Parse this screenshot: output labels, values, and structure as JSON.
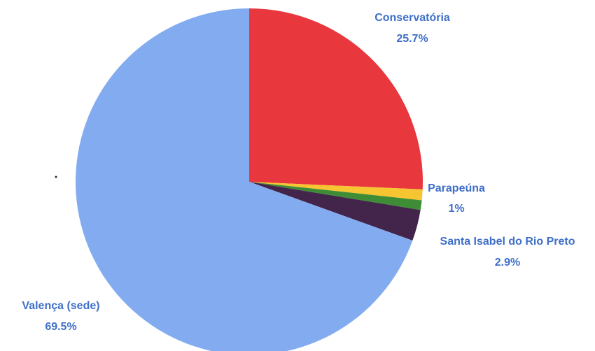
{
  "chart_data": {
    "type": "pie",
    "title": "",
    "legend": "none",
    "label_color": "#3f6fc8",
    "slices": [
      {
        "label": "Conservatória",
        "value": 25.7,
        "display": "25.7%",
        "color": "#e8373d"
      },
      {
        "label": "Parapeúna",
        "value": 1.0,
        "display": "1%",
        "color": "#f7c531",
        "show_label": true
      },
      {
        "label": "",
        "value": 0.9,
        "display": "",
        "color": "#3e8d36",
        "show_label": false
      },
      {
        "label": "Santa Isabel do Rio Preto",
        "value": 2.9,
        "display": "2.9%",
        "color": "#43244b"
      },
      {
        "label": "Valença (sede)",
        "value": 69.5,
        "display": "69.5%",
        "color": "#82acef"
      }
    ]
  }
}
